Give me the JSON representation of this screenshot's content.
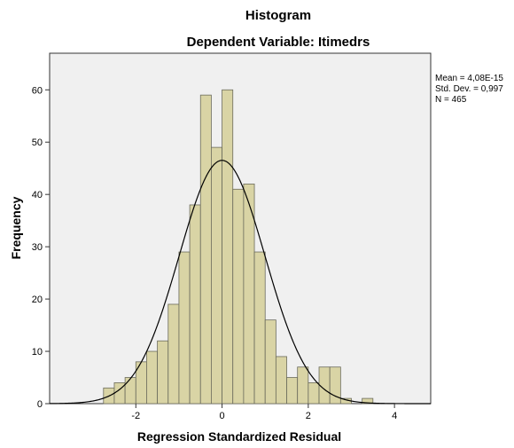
{
  "chart_data": {
    "type": "bar",
    "title": "Histogram",
    "subtitle": "Dependent Variable: Itimedrs",
    "xlabel": "Regression Standardized Residual",
    "ylabel": "Frequency",
    "xlim": [
      -4,
      4.84
    ],
    "ylim": [
      0,
      67
    ],
    "x_ticks": [
      -2,
      0,
      2,
      4
    ],
    "y_ticks": [
      0,
      10,
      20,
      30,
      40,
      50,
      60
    ],
    "bin_width": 0.25,
    "bins": [
      {
        "start": -2.75,
        "value": 3
      },
      {
        "start": -2.5,
        "value": 4
      },
      {
        "start": -2.25,
        "value": 5
      },
      {
        "start": -2.0,
        "value": 8
      },
      {
        "start": -1.75,
        "value": 10
      },
      {
        "start": -1.5,
        "value": 12
      },
      {
        "start": -1.25,
        "value": 19
      },
      {
        "start": -1.0,
        "value": 29
      },
      {
        "start": -0.75,
        "value": 38
      },
      {
        "start": -0.5,
        "value": 59
      },
      {
        "start": -0.25,
        "value": 49
      },
      {
        "start": 0.0,
        "value": 60
      },
      {
        "start": 0.25,
        "value": 41
      },
      {
        "start": 0.5,
        "value": 42
      },
      {
        "start": 0.75,
        "value": 29
      },
      {
        "start": 1.0,
        "value": 16
      },
      {
        "start": 1.25,
        "value": 9
      },
      {
        "start": 1.5,
        "value": 5
      },
      {
        "start": 1.75,
        "value": 7
      },
      {
        "start": 2.0,
        "value": 4
      },
      {
        "start": 2.25,
        "value": 7
      },
      {
        "start": 2.5,
        "value": 7
      },
      {
        "start": 2.75,
        "value": 1
      },
      {
        "start": 3.25,
        "value": 1
      }
    ],
    "normal_curve": {
      "mean": 0,
      "sd": 0.997,
      "n": 465
    },
    "stats": [
      "Mean = 4,08E-15",
      "Std. Dev. = 0,997",
      "N = 465"
    ],
    "legend_position": "right",
    "grid": false,
    "colors": {
      "bar_fill": "#d9d4a5",
      "bar_stroke": "#6b6b5c",
      "plot_background": "#f0f0f0",
      "curve": "#000000"
    }
  }
}
